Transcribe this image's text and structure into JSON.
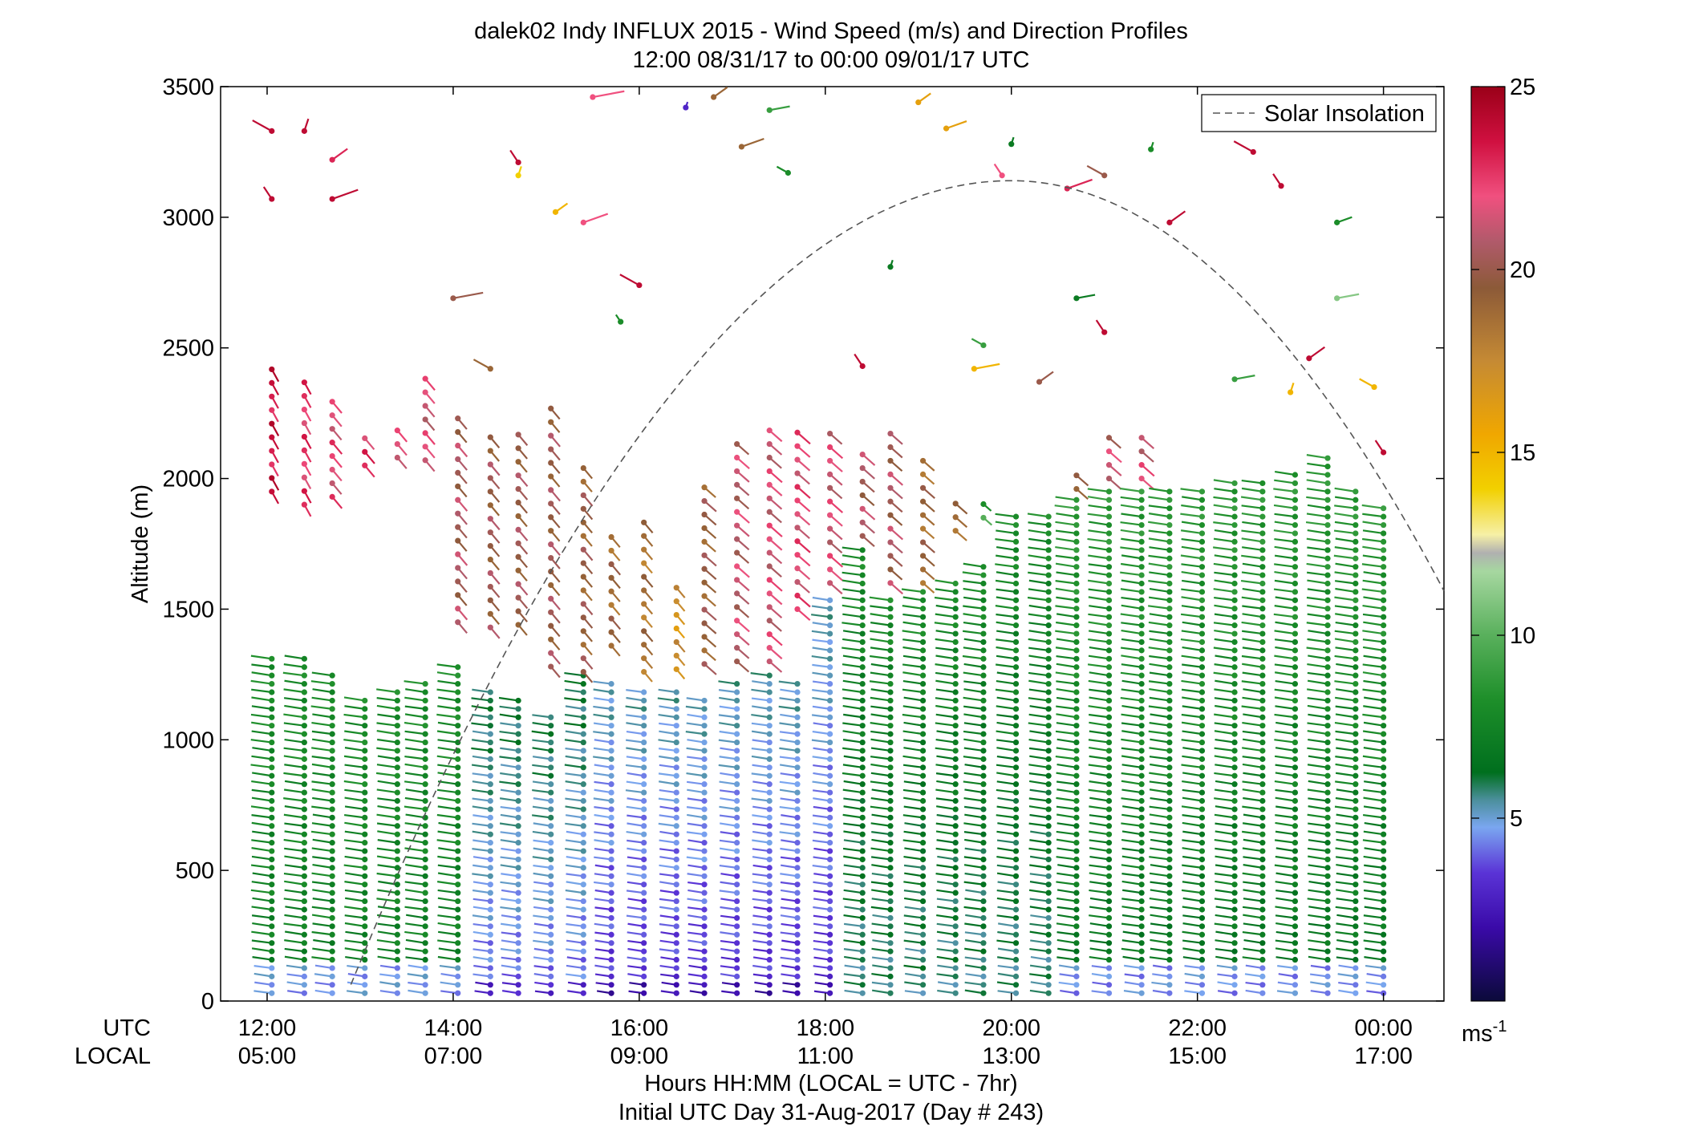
{
  "chart_data": {
    "type": "scatter",
    "title": "dalek02 Indy INFLUX 2015 - Wind Speed (m/s) and Direction Profiles",
    "subtitle": "12:00 08/31/17 to 00:00 09/01/17  UTC",
    "ylabel": "Altitude (m)",
    "xlabel_line1": "Hours HH:MM  (LOCAL = UTC - 7hr)",
    "xlabel_line2": "Initial UTC Day 31-Aug-2017 (Day # 243)",
    "x_row_label_utc": "UTC",
    "x_row_label_local": "LOCAL",
    "xlim_hours_utc": [
      11.5,
      24.65
    ],
    "ylim": [
      0,
      3500
    ],
    "grid": false,
    "x_ticks": [
      {
        "hour": 12,
        "utc": "12:00",
        "local": "05:00"
      },
      {
        "hour": 14,
        "utc": "14:00",
        "local": "07:00"
      },
      {
        "hour": 16,
        "utc": "16:00",
        "local": "09:00"
      },
      {
        "hour": 18,
        "utc": "18:00",
        "local": "11:00"
      },
      {
        "hour": 20,
        "utc": "20:00",
        "local": "13:00"
      },
      {
        "hour": 22,
        "utc": "22:00",
        "local": "15:00"
      },
      {
        "hour": 24,
        "utc": "00:00",
        "local": "17:00"
      }
    ],
    "y_ticks": [
      0,
      500,
      1000,
      1500,
      2000,
      2500,
      3000,
      3500
    ],
    "colorbar": {
      "min": 0,
      "max": 25,
      "ticks": [
        5,
        10,
        15,
        20,
        25
      ],
      "units_label": "ms",
      "units_exponent": "-1"
    },
    "legend": {
      "entries": [
        "Solar Insolation"
      ],
      "placement": "top-right"
    },
    "solar_insolation": {
      "style": "dashed",
      "color": "#555555",
      "start_hour": 12.9,
      "peak_hour": 20.0,
      "peak_altitude": 3140,
      "end_hour": 24.65,
      "end_altitude": 1570
    },
    "profiles": [
      {
        "hour": 12.05,
        "top": 1340,
        "upper": [
          {
            "from": 1950,
            "to": 2420,
            "speed": 23.5,
            "dir": 260
          }
        ]
      },
      {
        "hour": 12.4,
        "top": 1340,
        "upper": [
          {
            "from": 1900,
            "to": 2380,
            "speed": 22.5,
            "dir": 260
          }
        ]
      },
      {
        "hour": 12.7,
        "top": 1250,
        "upper": [
          {
            "from": 1930,
            "to": 2330,
            "speed": 22.0,
            "dir": 255
          }
        ]
      },
      {
        "hour": 13.05,
        "top": 1170,
        "upper": [
          {
            "from": 2050,
            "to": 2200,
            "speed": 22.5,
            "dir": 255
          }
        ]
      },
      {
        "hour": 13.4,
        "top": 1200,
        "upper": [
          {
            "from": 2080,
            "to": 2200,
            "speed": 22.0,
            "dir": 255
          }
        ]
      },
      {
        "hour": 13.7,
        "top": 1240,
        "upper": [
          {
            "from": 2070,
            "to": 2420,
            "speed": 21.5,
            "dir": 255
          }
        ]
      },
      {
        "hour": 14.05,
        "top": 1290,
        "upper": [
          {
            "from": 1450,
            "to": 2280,
            "speed": 20.5,
            "dir": 255
          }
        ]
      },
      {
        "hour": 14.4,
        "top": 1200,
        "upper": [
          {
            "from": 1430,
            "to": 2200,
            "speed": 20.0,
            "dir": 255
          }
        ]
      },
      {
        "hour": 14.7,
        "top": 1170,
        "upper": [
          {
            "from": 1440,
            "to": 2210,
            "speed": 20.0,
            "dir": 255
          }
        ]
      },
      {
        "hour": 15.05,
        "top": 1100,
        "upper": [
          {
            "from": 1280,
            "to": 2280,
            "speed": 20.0,
            "dir": 255
          }
        ]
      },
      {
        "hour": 15.4,
        "top": 1250,
        "upper": [
          {
            "from": 1260,
            "to": 2040,
            "speed": 19.5,
            "dir": 255
          }
        ]
      },
      {
        "hour": 15.7,
        "top": 1240,
        "upper": [
          {
            "from": 1360,
            "to": 1790,
            "speed": 19.0,
            "dir": 255
          }
        ]
      },
      {
        "hour": 16.05,
        "top": 1200,
        "upper": [
          {
            "from": 1260,
            "to": 1870,
            "speed": 18.5,
            "dir": 255
          }
        ]
      },
      {
        "hour": 16.4,
        "top": 1210,
        "upper": [
          {
            "from": 1270,
            "to": 1590,
            "speed": 17.0,
            "dir": 255
          }
        ]
      },
      {
        "hour": 16.7,
        "top": 1180,
        "upper": [
          {
            "from": 1290,
            "to": 2000,
            "speed": 19.5,
            "dir": 250
          }
        ]
      },
      {
        "hour": 17.05,
        "top": 1230,
        "upper": [
          {
            "from": 1300,
            "to": 2180,
            "speed": 21.0,
            "dir": 250
          }
        ]
      },
      {
        "hour": 17.4,
        "top": 1250,
        "upper": [
          {
            "from": 1300,
            "to": 2200,
            "speed": 21.5,
            "dir": 250
          }
        ]
      },
      {
        "hour": 17.7,
        "top": 1230,
        "upper": [
          {
            "from": 1500,
            "to": 2220,
            "speed": 22.0,
            "dir": 250
          }
        ]
      },
      {
        "hour": 18.05,
        "top": 1540,
        "upper": [
          {
            "from": 1600,
            "to": 2210,
            "speed": 21.5,
            "dir": 250
          }
        ]
      },
      {
        "hour": 18.4,
        "top": 1750,
        "upper": [
          {
            "from": 1780,
            "to": 2100,
            "speed": 20.5,
            "dir": 250
          }
        ]
      },
      {
        "hour": 18.7,
        "top": 1560,
        "upper": [
          {
            "from": 1600,
            "to": 2200,
            "speed": 20.5,
            "dir": 250
          }
        ]
      },
      {
        "hour": 19.05,
        "top": 1580,
        "upper": [
          {
            "from": 1600,
            "to": 2100,
            "speed": 19.0,
            "dir": 250
          }
        ]
      },
      {
        "hour": 19.4,
        "top": 1620,
        "upper": [
          {
            "from": 1800,
            "to": 1950,
            "speed": 18.5,
            "dir": 250
          }
        ]
      },
      {
        "hour": 19.7,
        "top": 1670,
        "upper": [
          {
            "from": 1850,
            "to": 1950,
            "speed": 9.0,
            "dir": 250
          }
        ]
      },
      {
        "hour": 20.05,
        "top": 1870,
        "upper": []
      },
      {
        "hour": 20.4,
        "top": 1880,
        "upper": []
      },
      {
        "hour": 20.7,
        "top": 1920,
        "upper": [
          {
            "from": 1960,
            "to": 2050,
            "speed": 20.0,
            "dir": 250
          }
        ]
      },
      {
        "hour": 21.05,
        "top": 1950,
        "upper": [
          {
            "from": 2000,
            "to": 2200,
            "speed": 21.0,
            "dir": 250
          }
        ]
      },
      {
        "hour": 21.4,
        "top": 1960,
        "upper": [
          {
            "from": 2000,
            "to": 2200,
            "speed": 21.5,
            "dir": 250
          }
        ]
      },
      {
        "hour": 21.7,
        "top": 1960,
        "upper": []
      },
      {
        "hour": 22.05,
        "top": 1970,
        "upper": []
      },
      {
        "hour": 22.4,
        "top": 2000,
        "upper": []
      },
      {
        "hour": 22.7,
        "top": 2000,
        "upper": []
      },
      {
        "hour": 23.05,
        "top": 2040,
        "upper": []
      },
      {
        "hour": 23.4,
        "top": 2080,
        "upper": []
      },
      {
        "hour": 23.7,
        "top": 1950,
        "upper": []
      },
      {
        "hour": 24.0,
        "top": 1900,
        "upper": []
      }
    ]
  }
}
